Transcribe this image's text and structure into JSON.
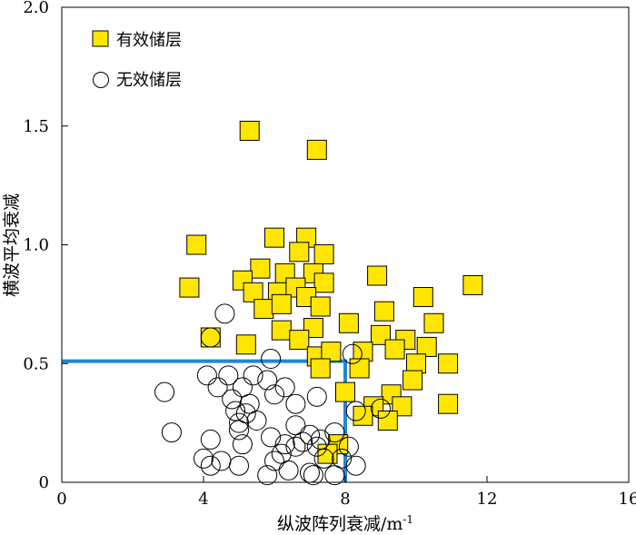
{
  "chart_data": {
    "type": "scatter",
    "xlabel": "纵波阵列衰减/m",
    "xlabel_sup": "-1",
    "ylabel": "横波平均衰减",
    "xlim": [
      0,
      16
    ],
    "ylim": [
      0,
      2.0
    ],
    "x_ticks": [
      0,
      4,
      8,
      12,
      16
    ],
    "x_tick_labels": [
      "0",
      "4",
      "8",
      "12",
      "16"
    ],
    "y_ticks": [
      0,
      0.5,
      1.0,
      1.5,
      2.0
    ],
    "y_tick_labels": [
      "0",
      "0.5",
      "1.0",
      "1.5",
      "2.0"
    ],
    "legend_position": "top-left",
    "grid": false,
    "series": [
      {
        "name": "有效储层",
        "marker": "square",
        "color": "#ffe600",
        "points": [
          [
            5.3,
            1.48
          ],
          [
            7.2,
            1.4
          ],
          [
            3.8,
            1.0
          ],
          [
            3.6,
            0.82
          ],
          [
            11.6,
            0.83
          ],
          [
            6.0,
            1.03
          ],
          [
            6.9,
            1.03
          ],
          [
            6.7,
            0.97
          ],
          [
            7.4,
            0.96
          ],
          [
            5.6,
            0.9
          ],
          [
            6.3,
            0.88
          ],
          [
            7.1,
            0.88
          ],
          [
            5.1,
            0.85
          ],
          [
            5.4,
            0.8
          ],
          [
            6.1,
            0.8
          ],
          [
            6.6,
            0.82
          ],
          [
            7.4,
            0.84
          ],
          [
            8.9,
            0.87
          ],
          [
            10.2,
            0.78
          ],
          [
            5.7,
            0.73
          ],
          [
            6.2,
            0.75
          ],
          [
            6.9,
            0.78
          ],
          [
            7.3,
            0.74
          ],
          [
            9.1,
            0.72
          ],
          [
            10.5,
            0.67
          ],
          [
            8.1,
            0.67
          ],
          [
            6.2,
            0.64
          ],
          [
            7.1,
            0.65
          ],
          [
            6.7,
            0.6
          ],
          [
            9.0,
            0.62
          ],
          [
            9.7,
            0.6
          ],
          [
            10.3,
            0.57
          ],
          [
            4.2,
            0.61
          ],
          [
            5.2,
            0.58
          ],
          [
            7.2,
            0.53
          ],
          [
            7.6,
            0.55
          ],
          [
            8.5,
            0.55
          ],
          [
            9.4,
            0.56
          ],
          [
            10.0,
            0.5
          ],
          [
            10.9,
            0.5
          ],
          [
            8.4,
            0.48
          ],
          [
            7.3,
            0.48
          ],
          [
            9.9,
            0.43
          ],
          [
            8.0,
            0.38
          ],
          [
            9.3,
            0.37
          ],
          [
            8.8,
            0.32
          ],
          [
            9.6,
            0.32
          ],
          [
            10.9,
            0.33
          ],
          [
            8.5,
            0.28
          ],
          [
            9.2,
            0.26
          ],
          [
            7.8,
            0.16
          ],
          [
            7.5,
            0.12
          ]
        ]
      },
      {
        "name": "无效储层",
        "marker": "circle",
        "color": "#ffffff",
        "points": [
          [
            4.6,
            0.71
          ],
          [
            4.2,
            0.61
          ],
          [
            5.9,
            0.52
          ],
          [
            8.2,
            0.54
          ],
          [
            4.1,
            0.45
          ],
          [
            4.7,
            0.45
          ],
          [
            5.4,
            0.45
          ],
          [
            5.8,
            0.43
          ],
          [
            4.4,
            0.4
          ],
          [
            5.1,
            0.4
          ],
          [
            6.3,
            0.4
          ],
          [
            2.9,
            0.38
          ],
          [
            4.8,
            0.35
          ],
          [
            6.0,
            0.37
          ],
          [
            7.2,
            0.36
          ],
          [
            5.3,
            0.33
          ],
          [
            4.9,
            0.3
          ],
          [
            6.6,
            0.33
          ],
          [
            5.2,
            0.29
          ],
          [
            8.3,
            0.3
          ],
          [
            9.0,
            0.31
          ],
          [
            5.5,
            0.26
          ],
          [
            6.6,
            0.24
          ],
          [
            5.0,
            0.22
          ],
          [
            7.0,
            0.2
          ],
          [
            7.7,
            0.21
          ],
          [
            3.1,
            0.21
          ],
          [
            4.2,
            0.18
          ],
          [
            5.9,
            0.19
          ],
          [
            6.3,
            0.16
          ],
          [
            6.8,
            0.17
          ],
          [
            7.2,
            0.15
          ],
          [
            8.1,
            0.15
          ],
          [
            5.1,
            0.16
          ],
          [
            6.6,
            0.15
          ],
          [
            4.0,
            0.1
          ],
          [
            4.5,
            0.09
          ],
          [
            6.0,
            0.09
          ],
          [
            7.4,
            0.1
          ],
          [
            7.9,
            0.1
          ],
          [
            4.2,
            0.07
          ],
          [
            5.0,
            0.07
          ],
          [
            6.4,
            0.05
          ],
          [
            7.0,
            0.04
          ],
          [
            8.3,
            0.07
          ],
          [
            5.8,
            0.03
          ],
          [
            7.1,
            0.03
          ],
          [
            7.7,
            0.03
          ],
          [
            5.0,
            0.25
          ],
          [
            6.2,
            0.12
          ],
          [
            7.3,
            0.18
          ]
        ]
      }
    ],
    "cutoff": {
      "x": 8.0,
      "y": 0.51,
      "color": "#1e88d6"
    }
  }
}
